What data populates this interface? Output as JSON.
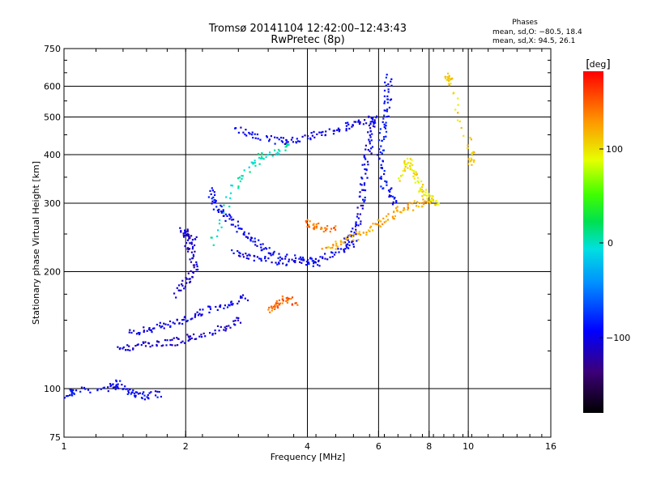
{
  "title_line1": "Tromsø 20141104 12:42:00–12:43:43",
  "title_line2": "RwPretec (8p)",
  "phase_box": {
    "heading": "Phases",
    "line_o": "mean, sd,O: −80.5, 18.4",
    "line_x": "mean, sd,X:  94.5, 26.1"
  },
  "colorbar": {
    "unit": "deg",
    "ticks": [
      "100",
      "0",
      "−100"
    ]
  },
  "chart_data": {
    "type": "scatter",
    "xlabel": "Frequency [MHz]",
    "ylabel": "Stationary phase Virtual Height [km]",
    "x_scale": "log",
    "y_scale": "log",
    "xlim": [
      1,
      16
    ],
    "ylim": [
      75,
      750
    ],
    "x_ticks": [
      1,
      2,
      4,
      6,
      8,
      10,
      16
    ],
    "x_tick_labels": [
      "1",
      "2",
      "4",
      "6",
      "8",
      "10",
      "16"
    ],
    "y_ticks": [
      75,
      100,
      200,
      300,
      400,
      500,
      600,
      750
    ],
    "y_tick_labels": [
      "75",
      "100",
      "200",
      "300",
      "400",
      "500",
      "600",
      "750"
    ],
    "grid": true,
    "color_scale": "phase",
    "color_range": [
      -180,
      180
    ],
    "traces": [
      {
        "name": "",
        "phase": -95,
        "points": [
          [
            1.02,
            97
          ],
          [
            1.05,
            99
          ],
          [
            1.3,
            101
          ],
          [
            1.35,
            104
          ],
          [
            1.45,
            99
          ],
          [
            1.55,
            96
          ],
          [
            1.7,
            97
          ]
        ]
      },
      {
        "name": "",
        "phase": -110,
        "points": [
          [
            1.35,
            128
          ],
          [
            1.5,
            129
          ],
          [
            1.7,
            131
          ],
          [
            1.9,
            133
          ],
          [
            2.1,
            137
          ],
          [
            2.4,
            142
          ],
          [
            2.7,
            150
          ]
        ]
      },
      {
        "name": "",
        "phase": -100,
        "points": [
          [
            1.45,
            140
          ],
          [
            1.6,
            143
          ],
          [
            1.8,
            147
          ],
          [
            2.0,
            152
          ],
          [
            2.2,
            158
          ],
          [
            2.5,
            165
          ],
          [
            2.8,
            172
          ]
        ]
      },
      {
        "name": "",
        "phase": -110,
        "points": [
          [
            1.9,
            175
          ],
          [
            2.0,
            190
          ],
          [
            2.1,
            205
          ],
          [
            2.05,
            225
          ],
          [
            2.0,
            248
          ],
          [
            1.95,
            258
          ],
          [
            2.1,
            240
          ]
        ]
      },
      {
        "name": "",
        "phase": -95,
        "points": [
          [
            2.3,
            330
          ],
          [
            2.35,
            300
          ],
          [
            2.45,
            285
          ],
          [
            2.6,
            270
          ],
          [
            2.8,
            250
          ],
          [
            3.0,
            235
          ],
          [
            3.3,
            222
          ],
          [
            3.8,
            215
          ],
          [
            4.2,
            212
          ]
        ]
      },
      {
        "name": "",
        "phase": -100,
        "points": [
          [
            2.6,
            225
          ],
          [
            2.9,
            218
          ],
          [
            3.3,
            214
          ],
          [
            3.8,
            212
          ],
          [
            4.3,
            217
          ],
          [
            4.8,
            228
          ],
          [
            5.2,
            240
          ]
        ]
      },
      {
        "name": "",
        "phase": -100,
        "points": [
          [
            2.6,
            470
          ],
          [
            3.0,
            445
          ],
          [
            3.4,
            435
          ],
          [
            3.8,
            440
          ],
          [
            4.3,
            455
          ],
          [
            4.8,
            470
          ],
          [
            5.3,
            488
          ],
          [
            5.8,
            497
          ]
        ]
      },
      {
        "name": "",
        "phase": -100,
        "points": [
          [
            5.8,
            500
          ],
          [
            5.7,
            450
          ],
          [
            5.6,
            400
          ],
          [
            5.5,
            350
          ],
          [
            5.4,
            300
          ],
          [
            5.3,
            260
          ],
          [
            5.0,
            240
          ]
        ]
      },
      {
        "name": "",
        "phase": -90,
        "points": [
          [
            6.3,
            640
          ],
          [
            6.3,
            560
          ],
          [
            6.2,
            500
          ],
          [
            6.1,
            440
          ],
          [
            6.0,
            380
          ],
          [
            6.2,
            330
          ],
          [
            6.6,
            305
          ]
        ]
      },
      {
        "name": "",
        "phase": 120,
        "points": [
          [
            4.4,
            230
          ],
          [
            4.8,
            237
          ],
          [
            5.3,
            250
          ],
          [
            5.8,
            262
          ],
          [
            6.3,
            278
          ],
          [
            6.8,
            290
          ],
          [
            7.5,
            300
          ],
          [
            8.0,
            305
          ]
        ]
      },
      {
        "name": "",
        "phase": 95,
        "points": [
          [
            6.8,
            350
          ],
          [
            7.1,
            390
          ],
          [
            7.3,
            360
          ],
          [
            7.6,
            330
          ],
          [
            7.9,
            315
          ],
          [
            8.3,
            300
          ]
        ]
      },
      {
        "name": "",
        "phase": 105,
        "points": [
          [
            8.9,
            640
          ],
          [
            8.9,
            620
          ],
          [
            10.1,
            420
          ],
          [
            10.1,
            380
          ]
        ]
      },
      {
        "name": "",
        "phase": 145,
        "points": [
          [
            3.2,
            160
          ],
          [
            3.35,
            165
          ],
          [
            3.5,
            170
          ],
          [
            3.7,
            168
          ]
        ]
      },
      {
        "name": "",
        "phase": 140,
        "points": [
          [
            3.9,
            268
          ],
          [
            4.2,
            262
          ],
          [
            4.6,
            258
          ]
        ]
      },
      {
        "name": "",
        "phase": 0,
        "points": [
          [
            2.3,
            235
          ],
          [
            2.6,
            330
          ],
          [
            2.9,
            380
          ],
          [
            3.1,
            400
          ],
          [
            3.6,
            420
          ]
        ]
      }
    ]
  }
}
